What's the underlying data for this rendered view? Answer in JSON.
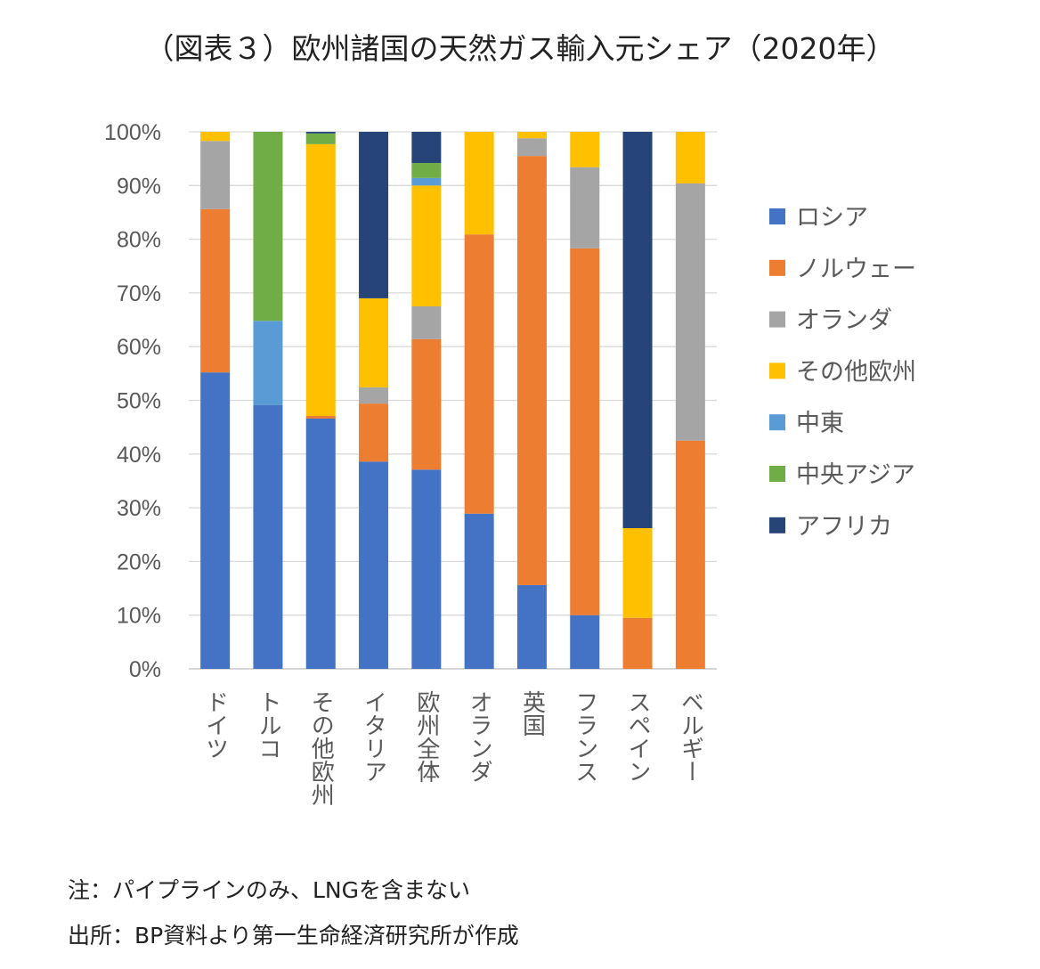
{
  "chart_data": {
    "type": "bar",
    "stacked": true,
    "title": "（図表３）欧州諸国の天然ガス輸入元シェア（2020年）",
    "xlabel": "",
    "ylabel": "",
    "ylim": [
      0,
      100
    ],
    "yticks": [
      "0%",
      "10%",
      "20%",
      "30%",
      "40%",
      "50%",
      "60%",
      "70%",
      "80%",
      "90%",
      "100%"
    ],
    "grid": true,
    "legend_position": "right",
    "categories": [
      "ドイツ",
      "トルコ",
      "その他欧州",
      "イタリア",
      "欧州全体",
      "オランダ",
      "英国",
      "フランス",
      "スペイン",
      "ベルギー"
    ],
    "series": [
      {
        "name": "ロシア",
        "color": "#4472C4",
        "values": [
          55.2,
          49.1,
          46.6,
          38.6,
          37.1,
          28.9,
          15.6,
          10.0,
          0,
          0
        ]
      },
      {
        "name": "ノルウェー",
        "color": "#ED7D31",
        "values": [
          30.4,
          0,
          0.5,
          10.8,
          24.3,
          52.0,
          79.9,
          68.3,
          9.5,
          42.5
        ]
      },
      {
        "name": "オランダ",
        "color": "#A5A5A5",
        "values": [
          12.7,
          0,
          0,
          3.0,
          6.1,
          0,
          3.3,
          15.1,
          0,
          47.9
        ]
      },
      {
        "name": "その他欧州",
        "color": "#FFC000",
        "values": [
          1.7,
          0,
          50.6,
          16.6,
          22.5,
          19.1,
          1.2,
          6.6,
          16.7,
          9.6
        ]
      },
      {
        "name": "中東",
        "color": "#5B9BD5",
        "values": [
          0,
          15.7,
          0,
          0,
          1.4,
          0,
          0,
          0,
          0,
          0
        ]
      },
      {
        "name": "中央アジア",
        "color": "#70AD47",
        "values": [
          0,
          35.2,
          2.0,
          0,
          2.8,
          0,
          0,
          0,
          0,
          0
        ]
      },
      {
        "name": "アフリカ",
        "color": "#264478",
        "values": [
          0,
          0,
          0.3,
          31.0,
          5.8,
          0,
          0,
          0,
          73.8,
          0
        ]
      }
    ]
  },
  "notes": {
    "note1": "注：パイプラインのみ、LNGを含まない",
    "note2": "出所：BP資料より第一生命経済研究所が作成"
  }
}
